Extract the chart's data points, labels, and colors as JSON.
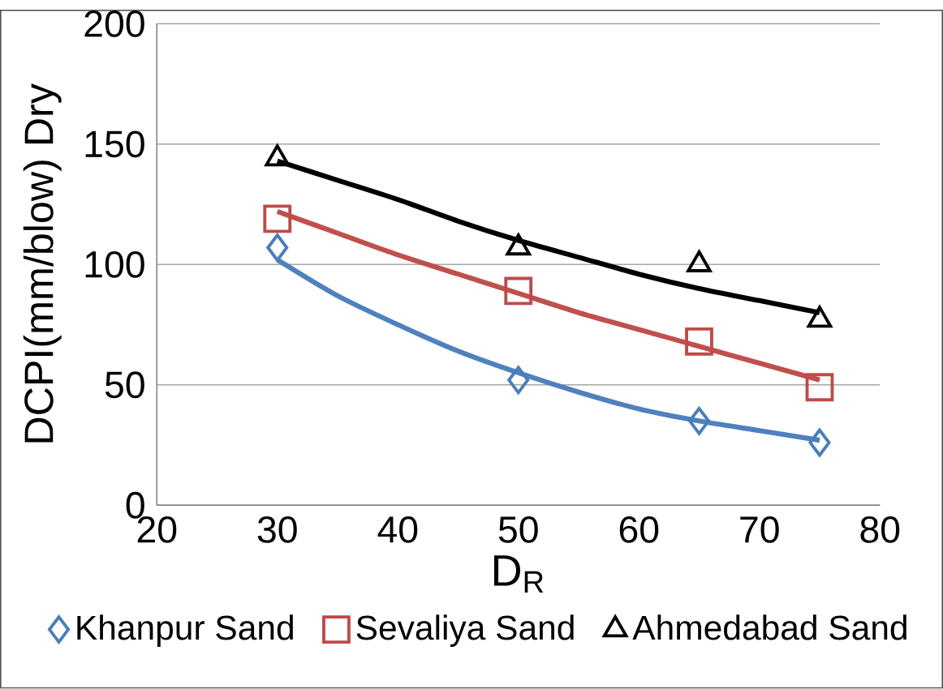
{
  "chart_data": {
    "type": "scatter",
    "xlabel": "D$_{R}$",
    "ylabel": "DCPI(mm/blow) Dry",
    "xlim": [
      20,
      80
    ],
    "xticks": [
      20,
      30,
      40,
      50,
      60,
      70,
      80
    ],
    "ylim": [
      0,
      200
    ],
    "yticks": [
      0,
      50,
      100,
      150,
      200
    ],
    "grid": "y",
    "legend": "bottom",
    "series": [
      {
        "name": "Khanpur Sand",
        "marker": "diamond",
        "color": "#4a7ebb",
        "x": [
          30,
          50,
          65,
          75
        ],
        "values": [
          107,
          52,
          35,
          26
        ]
      },
      {
        "name": "Sevaliya Sand",
        "marker": "square",
        "color": "#be4b48",
        "x": [
          30,
          50,
          65,
          75
        ],
        "values": [
          119,
          89,
          68,
          49
        ]
      },
      {
        "name": "Ahmedabad Sand",
        "marker": "triangle",
        "color": "#000000",
        "x": [
          30,
          50,
          65,
          75
        ],
        "values": [
          144,
          107,
          100,
          77
        ]
      },
      {
        "type": "line",
        "marker": "none",
        "color": "#4f81bd",
        "x": [
          30,
          35,
          40,
          45,
          50,
          55,
          60,
          65,
          70,
          75
        ],
        "values": [
          102,
          87,
          75,
          64,
          55,
          47,
          40,
          35,
          31,
          27
        ]
      },
      {
        "type": "line",
        "marker": "none",
        "color": "#c0504d",
        "x": [
          30,
          35,
          40,
          45,
          50,
          55,
          60,
          65,
          70,
          75
        ],
        "values": [
          122,
          113,
          104,
          96,
          88,
          80,
          73,
          66,
          59,
          52
        ]
      },
      {
        "type": "line",
        "marker": "none",
        "color": "#000000",
        "x": [
          30,
          35,
          40,
          45,
          50,
          55,
          60,
          65,
          70,
          75
        ],
        "values": [
          143,
          135,
          127,
          118,
          110,
          103,
          96,
          90,
          85,
          80
        ]
      }
    ]
  }
}
